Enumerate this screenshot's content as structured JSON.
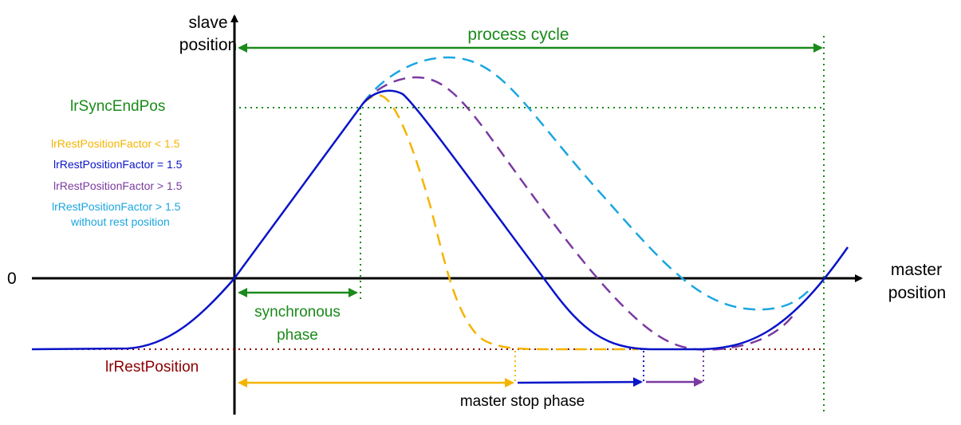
{
  "axes": {
    "y_label_line1": "slave",
    "y_label_line2": "position",
    "x_label_line1": "master",
    "x_label_line2": "position",
    "zero_label": "0"
  },
  "labels": {
    "process_cycle": "process cycle",
    "sync_end_pos": "lrSyncEndPos",
    "rest_position": "lrRestPosition",
    "synchronous_line1": "synchronous",
    "synchronous_line2": "phase",
    "master_stop_phase": "master stop phase"
  },
  "legend": [
    {
      "text": "lrRestPositionFactor < 1.5",
      "color": "#f4b400"
    },
    {
      "text": "lrRestPositionFactor = 1.5",
      "color": "#0a14c8"
    },
    {
      "text": "lrRestPositionFactor > 1.5",
      "color": "#7a3aa0"
    },
    {
      "text": "lrRestPositionFactor > 1.5",
      "color": "#1ba6e0"
    },
    {
      "text": "without rest position",
      "color": "#1ba6e0"
    }
  ],
  "colors": {
    "axis": "#000000",
    "green": "#1a8a1a",
    "dark_red": "#8b0000",
    "yellow": "#f4b400",
    "blue": "#0a14c8",
    "purple": "#7a3aa0",
    "cyan": "#1ba6e0"
  }
}
